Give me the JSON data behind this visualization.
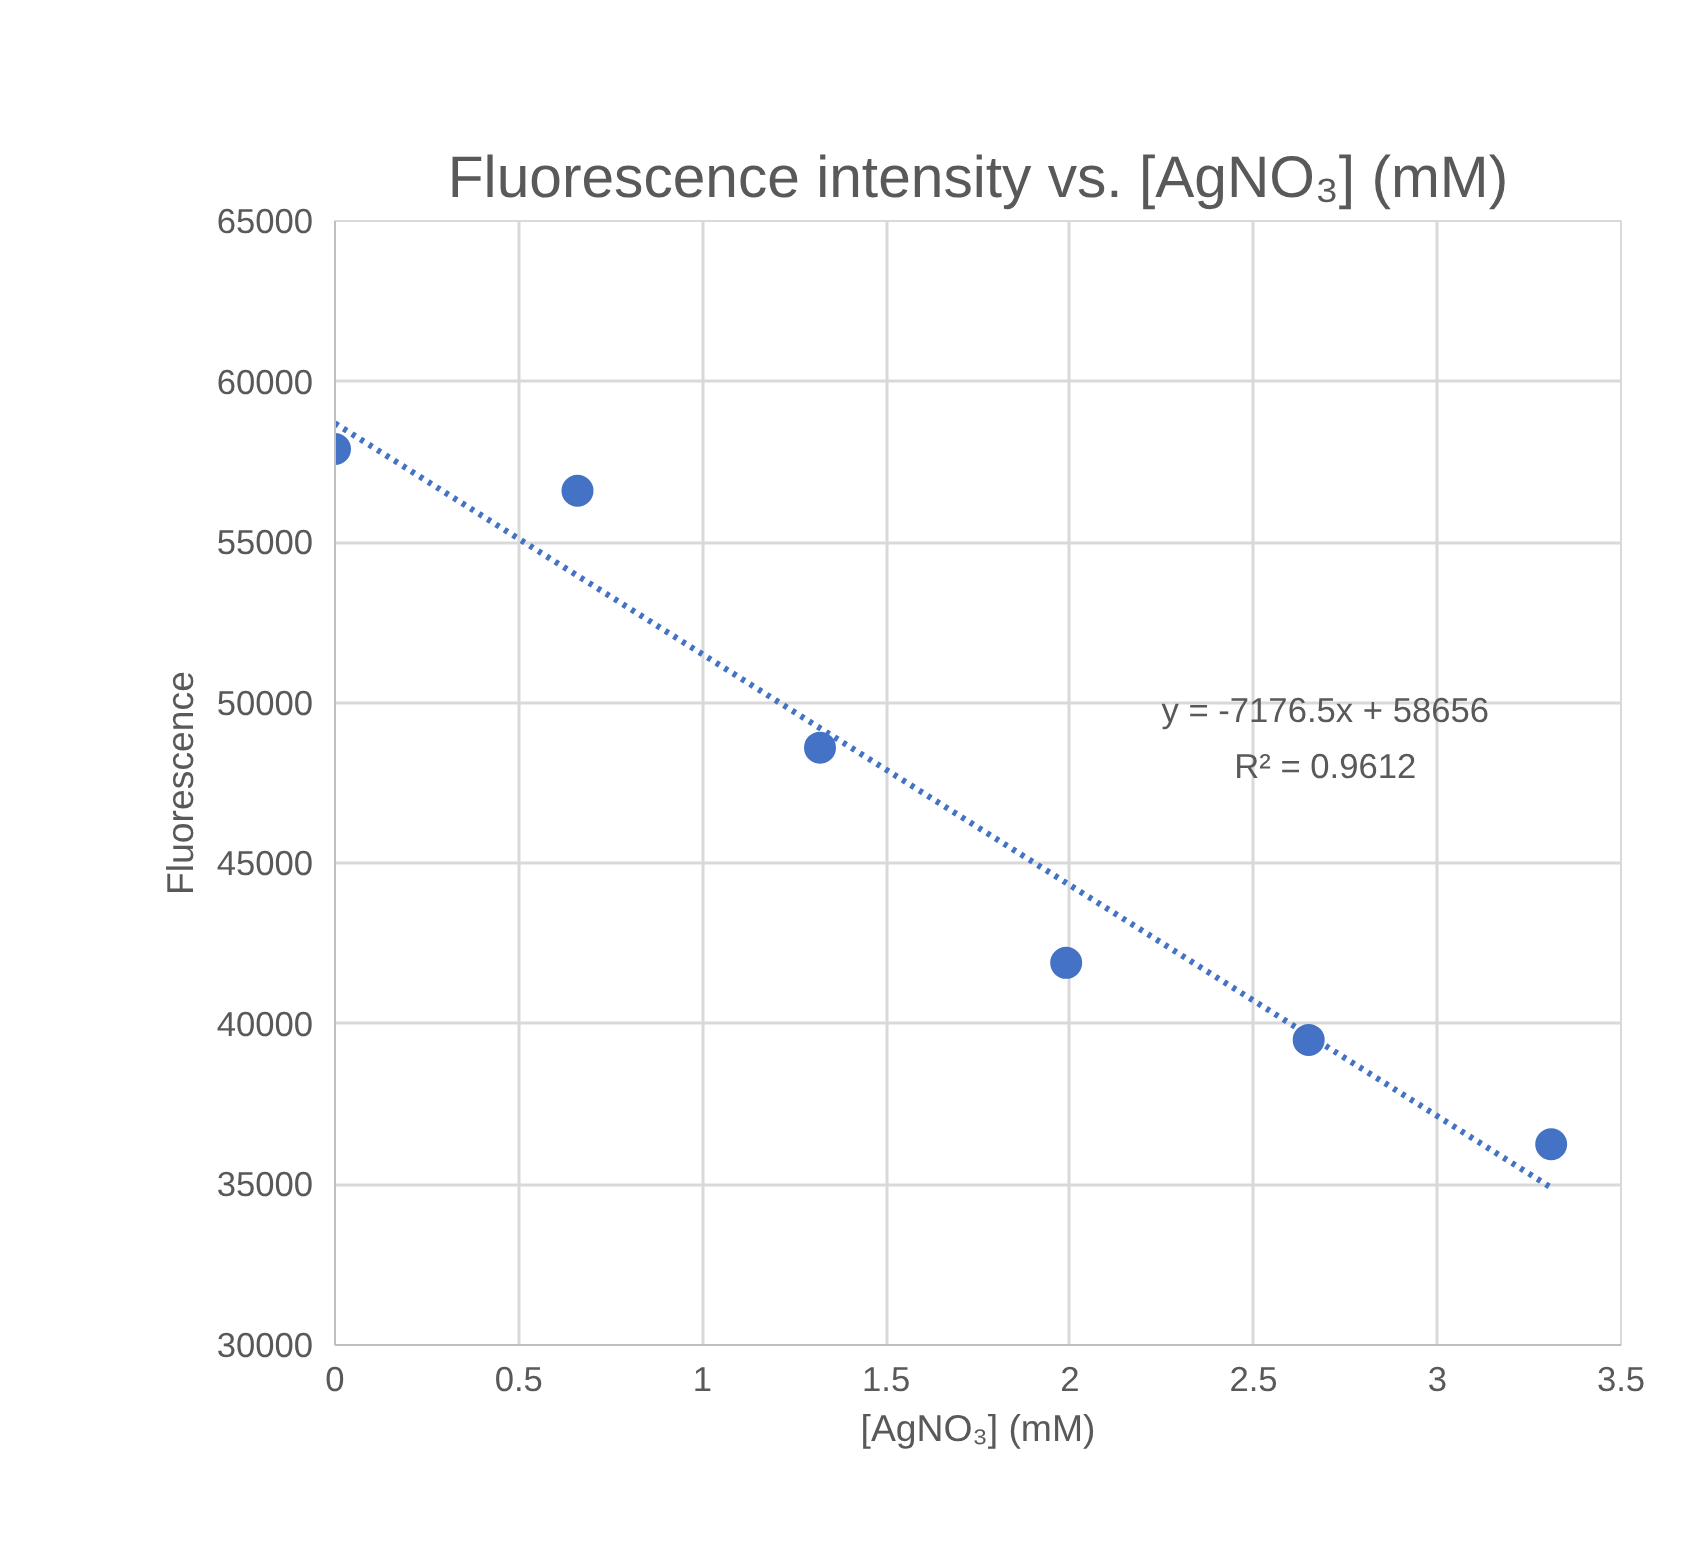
{
  "chart_data": {
    "type": "scatter",
    "title": "Fluorescence intensity vs. [AgNO₃] (mM)",
    "xlabel": "[AgNO₃] (mM)",
    "ylabel": "Fluorescence",
    "x": [
      0,
      0.66,
      1.32,
      1.99,
      2.65,
      3.31
    ],
    "series": [
      {
        "color": "#4472c4",
        "values": [
          57900,
          56600,
          48600,
          41900,
          39500,
          36250
        ],
        "marker": "circle"
      },
      {
        "type": "line",
        "color": "#4472c4",
        "x": [
          0,
          3.31
        ],
        "values": [
          58700,
          34900
        ],
        "line_style": "dotted",
        "marker": "none"
      }
    ],
    "annotations": [
      "y = -7176.5x + 58656",
      "R² = 0.9612"
    ],
    "xlim": [
      0,
      3.5
    ],
    "xticks": [
      0,
      0.5,
      1,
      1.5,
      2,
      2.5,
      3,
      3.5
    ],
    "ylim": [
      30000,
      65000
    ],
    "yticks": [
      30000,
      35000,
      40000,
      45000,
      50000,
      55000,
      60000,
      65000
    ],
    "grid": true
  }
}
